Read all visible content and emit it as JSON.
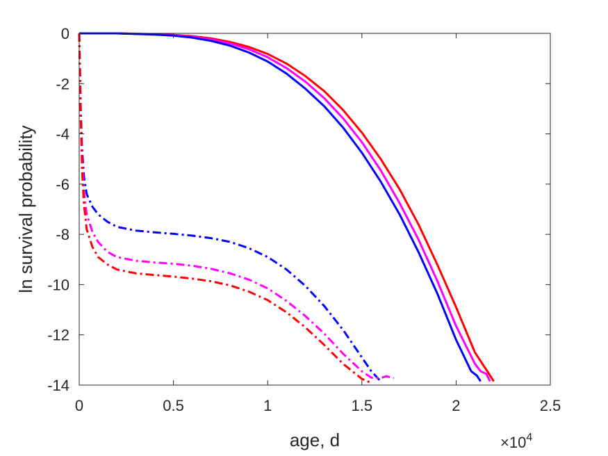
{
  "chart_data": {
    "type": "line",
    "xlabel": "age, d",
    "ylabel": "ln survival probability",
    "x_exponent_label": {
      "base": "×10",
      "power": "4"
    },
    "xlim": [
      0,
      25000
    ],
    "ylim": [
      -14,
      0
    ],
    "x_ticks": [
      0,
      5000,
      10000,
      15000,
      20000,
      25000
    ],
    "x_tick_labels": [
      "0",
      "0.5",
      "1",
      "1.5",
      "2",
      "2.5"
    ],
    "y_ticks": [
      0,
      -2,
      -4,
      -6,
      -8,
      -10,
      -12,
      -14
    ],
    "y_tick_labels": [
      "0",
      "-2",
      "-4",
      "-6",
      "-8",
      "-10",
      "-12",
      "-14"
    ],
    "grid": false,
    "series": [
      {
        "color": "#ff0000",
        "style": "solid",
        "x": [
          0,
          2000,
          4000,
          5000,
          6000,
          7000,
          8000,
          9000,
          10000,
          11000,
          12000,
          13000,
          14000,
          15000,
          16000,
          17000,
          18000,
          19000,
          20000,
          21000,
          21700,
          22000
        ],
        "y": [
          0,
          0,
          -0.03,
          -0.06,
          -0.11,
          -0.2,
          -0.34,
          -0.54,
          -0.82,
          -1.2,
          -1.7,
          -2.3,
          -3.05,
          -3.95,
          -5.0,
          -6.2,
          -7.6,
          -9.2,
          -10.9,
          -12.7,
          -13.5,
          -13.85
        ]
      },
      {
        "color": "#ff00ff",
        "style": "solid",
        "x": [
          0,
          2000,
          4000,
          5000,
          6000,
          7000,
          8000,
          9000,
          10000,
          11000,
          12000,
          13000,
          14000,
          15000,
          16000,
          17000,
          18000,
          19000,
          20000,
          21000,
          21300,
          21600,
          21800
        ],
        "y": [
          0,
          0,
          -0.04,
          -0.07,
          -0.13,
          -0.24,
          -0.4,
          -0.63,
          -0.95,
          -1.38,
          -1.92,
          -2.58,
          -3.38,
          -4.33,
          -5.45,
          -6.75,
          -8.2,
          -9.85,
          -11.65,
          -13.15,
          -13.45,
          -13.55,
          -13.85
        ]
      },
      {
        "color": "#0000ff",
        "style": "solid",
        "x": [
          0,
          2000,
          4000,
          5000,
          6000,
          7000,
          8000,
          9000,
          10000,
          11000,
          12000,
          13000,
          14000,
          15000,
          16000,
          17000,
          18000,
          19000,
          20000,
          20800,
          21100,
          21300
        ],
        "y": [
          0,
          0,
          -0.05,
          -0.09,
          -0.17,
          -0.3,
          -0.49,
          -0.76,
          -1.12,
          -1.6,
          -2.2,
          -2.9,
          -3.75,
          -4.75,
          -5.9,
          -7.2,
          -8.7,
          -10.35,
          -12.2,
          -13.45,
          -13.62,
          -13.85
        ]
      },
      {
        "color": "#0000ff",
        "style": "dashdot",
        "x": [
          0,
          40,
          80,
          150,
          250,
          400,
          700,
          1000,
          1500,
          2000,
          3000,
          4000,
          5000,
          6000,
          7000,
          8000,
          9000,
          10000,
          11000,
          12000,
          13000,
          14000,
          15000,
          15500,
          16000
        ],
        "y": [
          0,
          -1.5,
          -3.0,
          -4.6,
          -5.7,
          -6.4,
          -6.9,
          -7.2,
          -7.5,
          -7.7,
          -7.85,
          -7.92,
          -7.98,
          -8.05,
          -8.15,
          -8.3,
          -8.55,
          -8.9,
          -9.4,
          -10.05,
          -10.85,
          -11.8,
          -12.9,
          -13.45,
          -13.85
        ]
      },
      {
        "color": "#ff00ff",
        "style": "dashdot",
        "x": [
          0,
          40,
          80,
          150,
          250,
          400,
          700,
          1000,
          1500,
          2000,
          3000,
          4000,
          5000,
          6000,
          7000,
          8000,
          9000,
          10000,
          11000,
          12000,
          13000,
          14000,
          15000,
          15500,
          16000,
          16300,
          16700
        ],
        "y": [
          0,
          -1.5,
          -3.2,
          -5.0,
          -6.3,
          -7.2,
          -7.9,
          -8.3,
          -8.7,
          -8.9,
          -9.05,
          -9.12,
          -9.17,
          -9.25,
          -9.37,
          -9.55,
          -9.8,
          -10.15,
          -10.65,
          -11.25,
          -11.95,
          -12.75,
          -13.45,
          -13.7,
          -13.72,
          -13.65,
          -13.72
        ]
      },
      {
        "color": "#ff0000",
        "style": "dashdot",
        "x": [
          0,
          40,
          80,
          150,
          250,
          400,
          700,
          1000,
          1500,
          2000,
          3000,
          4000,
          5000,
          6000,
          7000,
          8000,
          9000,
          10000,
          11000,
          12000,
          13000,
          14000,
          15000,
          15300,
          15500
        ],
        "y": [
          0,
          -1.5,
          -3.3,
          -5.4,
          -6.8,
          -7.8,
          -8.5,
          -8.9,
          -9.2,
          -9.4,
          -9.55,
          -9.62,
          -9.68,
          -9.76,
          -9.87,
          -10.03,
          -10.28,
          -10.62,
          -11.1,
          -11.7,
          -12.4,
          -13.15,
          -13.75,
          -13.85,
          -13.9
        ]
      }
    ]
  }
}
